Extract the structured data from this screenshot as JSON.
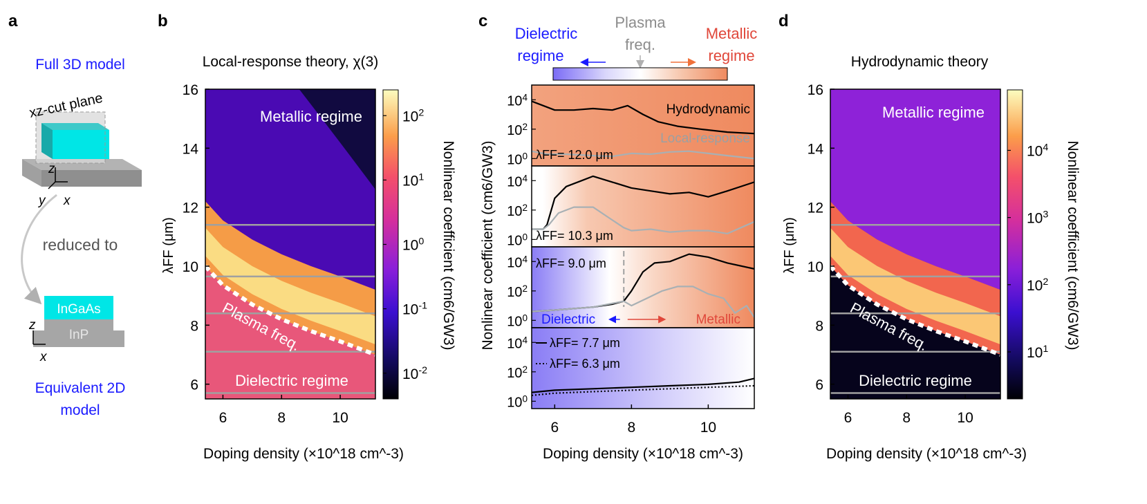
{
  "panels": {
    "a": {
      "letter": "a",
      "full_3d_title": "Full 3D model",
      "plane_label": "xz-cut plane",
      "axis_z": "z",
      "axis_y": "y",
      "axis_x": "x",
      "reduced_label": "reduced to",
      "layer_top": "InGaAs",
      "layer_bottom": "InP",
      "axis_z2": "z",
      "axis_x2": "x",
      "equiv_title_1": "Equivalent 2D",
      "equiv_title_2": "model"
    },
    "b": {
      "letter": "b"
    },
    "c": {
      "letter": "c",
      "regime_dielectric_1": "Dielectric",
      "regime_dielectric_2": "regime",
      "regime_plasma_1": "Plasma",
      "regime_plasma_2": "freq.",
      "regime_metallic_1": "Metallic",
      "regime_metallic_2": "regime"
    },
    "d": {
      "letter": "d"
    }
  },
  "colors": {
    "blue_text": "#1a1aff",
    "red_text": "#e0473a",
    "grey_text": "#8c8c8c",
    "cyan": "#00e6e6",
    "orange": "#f08a5d"
  },
  "chart_data": [
    {
      "type": "heatmap",
      "title": "Local-response theory, χ(3)",
      "xlabel": "Doping density (×10^18 cm^-3)",
      "ylabel": "λFF (μm)",
      "xlim": [
        5.4,
        11.2
      ],
      "ylim": [
        5.5,
        16
      ],
      "xticks": [
        6,
        8,
        10
      ],
      "yticks": [
        6,
        8,
        10,
        12,
        14,
        16
      ],
      "colorbar_label": "Nonlinear coefficient (cm6/GW3)",
      "colorbar_ticks": [
        "10^-2",
        "10^-1",
        "10^0",
        "10^1",
        "10^2"
      ],
      "colorbar_range_log10": [
        -2.4,
        2.4
      ],
      "guide_lines_um": [
        11.4,
        9.65,
        8.4,
        7.1,
        5.7
      ],
      "plasma_curve": {
        "x": [
          5.4,
          6,
          7,
          8,
          9,
          10,
          11.2
        ],
        "y": [
          10.0,
          9.35,
          8.7,
          8.2,
          7.8,
          7.45,
          7.0
        ]
      },
      "annotations": [
        "Metallic regime",
        "Plasma freq.",
        "Dielectric regime"
      ]
    },
    {
      "type": "line",
      "xlabel": "Doping density (×10^18 cm^-3)",
      "ylabel": "Nonlinear coefficient (cm6/GW3)",
      "xlim": [
        5.4,
        11.2
      ],
      "xticks": [
        6,
        8,
        10
      ],
      "ylim_log10": [
        -0.5,
        5
      ],
      "yticks": [
        "10^0",
        "10^2",
        "10^4"
      ],
      "subplots": [
        {
          "label": "λFF= 12.0 μm",
          "plasma_x": 5.0,
          "series": [
            {
              "name": "Hydrodynamic",
              "style": "solid-black",
              "x": [
                5.4,
                5.7,
                6.0,
                6.5,
                7.0,
                7.5,
                7.9,
                8.3,
                8.7,
                9.2,
                9.8,
                10.5,
                11.2
              ],
              "y": [
                3.9,
                3.6,
                3.3,
                3.3,
                3.4,
                3.3,
                3.6,
                3.0,
                2.5,
                2.2,
                2.0,
                1.8,
                1.7
              ]
            },
            {
              "name": "Local-response",
              "style": "solid-grey",
              "x": [
                5.4,
                5.8,
                6.3,
                7.0,
                7.5,
                8.0,
                8.5,
                9.0,
                9.5,
                10.0,
                10.5,
                11.2
              ],
              "y": [
                0.5,
                0.3,
                0.3,
                0.2,
                0.15,
                0.35,
                0.3,
                0.45,
                0.5,
                0.35,
                0.2,
                0.0
              ]
            }
          ]
        },
        {
          "label": "λFF= 10.3 μm",
          "plasma_x": 5.65,
          "series": [
            {
              "name": "Hydrodynamic",
              "style": "solid-black",
              "x": [
                5.4,
                5.7,
                5.8,
                6.0,
                6.3,
                6.7,
                7.0,
                7.5,
                8.0,
                8.5,
                9.0,
                9.5,
                10.0,
                10.5,
                11.2
              ],
              "y": [
                0.7,
                0.7,
                1.0,
                2.8,
                3.6,
                4.0,
                4.3,
                3.9,
                3.5,
                3.3,
                3.1,
                3.2,
                2.9,
                3.3,
                3.9
              ]
            },
            {
              "name": "Local-response",
              "style": "solid-grey",
              "x": [
                5.4,
                5.7,
                5.85,
                6.1,
                6.5,
                7.0,
                7.4,
                7.8,
                8.0,
                8.5,
                9.0,
                9.5,
                10.0,
                10.5,
                11.2
              ],
              "y": [
                0.7,
                0.7,
                1.0,
                1.8,
                2.2,
                2.2,
                1.5,
                0.8,
                0.6,
                0.7,
                0.5,
                0.6,
                0.6,
                0.4,
                1.2
              ]
            }
          ]
        },
        {
          "label": "λFF= 9.0 μm",
          "plasma_x": 7.8,
          "annotations": [
            "Dielectric",
            "Metallic"
          ],
          "series": [
            {
              "name": "Hydrodynamic",
              "style": "solid-black",
              "x": [
                5.4,
                6.0,
                6.5,
                7.0,
                7.5,
                7.8,
                8.0,
                8.3,
                8.6,
                9.0,
                9.5,
                10.0,
                10.5,
                11.2
              ],
              "y": [
                0.6,
                0.7,
                0.8,
                0.9,
                1.1,
                1.3,
                2.0,
                3.3,
                3.9,
                4.0,
                4.5,
                4.3,
                3.9,
                3.5
              ]
            },
            {
              "name": "Local-response",
              "style": "solid-grey",
              "x": [
                5.4,
                6.0,
                7.0,
                7.8,
                8.0,
                8.4,
                8.8,
                9.2,
                9.6,
                10.0,
                10.4,
                10.7,
                11.0,
                11.2
              ],
              "y": [
                0.6,
                0.7,
                0.9,
                1.3,
                1.0,
                1.5,
                2.0,
                2.3,
                2.3,
                1.8,
                1.5,
                0.5,
                1.0,
                0.2
              ]
            }
          ]
        },
        {
          "label": "",
          "plasma_x": 11.6,
          "series": [
            {
              "name": "λFF= 7.7 μm",
              "style": "solid-black",
              "x": [
                5.4,
                6,
                7,
                8,
                9,
                10,
                10.8,
                11.2
              ],
              "y": [
                0.6,
                0.75,
                0.85,
                0.95,
                1.05,
                1.15,
                1.3,
                1.55
              ]
            },
            {
              "name": "λFF= 6.3 μm",
              "style": "dotted-black",
              "x": [
                5.4,
                6,
                7,
                8,
                9,
                10,
                11.2
              ],
              "y": [
                0.4,
                0.55,
                0.65,
                0.75,
                0.85,
                0.95,
                1.05
              ]
            }
          ]
        }
      ]
    },
    {
      "type": "heatmap",
      "title": "Hydrodynamic theory",
      "xlabel": "Doping density (×10^18 cm^-3)",
      "ylabel": "λFF (μm)",
      "xlim": [
        5.4,
        11.2
      ],
      "ylim": [
        5.5,
        16
      ],
      "xticks": [
        6,
        8,
        10
      ],
      "yticks": [
        6,
        8,
        10,
        12,
        14,
        16
      ],
      "colorbar_label": "Nonlinear coefficient (cm6/GW3)",
      "colorbar_ticks": [
        "10^1",
        "10^2",
        "10^3",
        "10^4"
      ],
      "colorbar_range_log10": [
        0.3,
        4.9
      ],
      "guide_lines_um": [
        11.4,
        9.65,
        8.4,
        7.1,
        5.7
      ],
      "plasma_curve": {
        "x": [
          5.4,
          6,
          7,
          8,
          9,
          10,
          11.2
        ],
        "y": [
          10.0,
          9.35,
          8.7,
          8.2,
          7.8,
          7.45,
          7.0
        ]
      },
      "annotations": [
        "Metallic regime",
        "Plasma freq.",
        "Dielectric regime"
      ]
    }
  ]
}
